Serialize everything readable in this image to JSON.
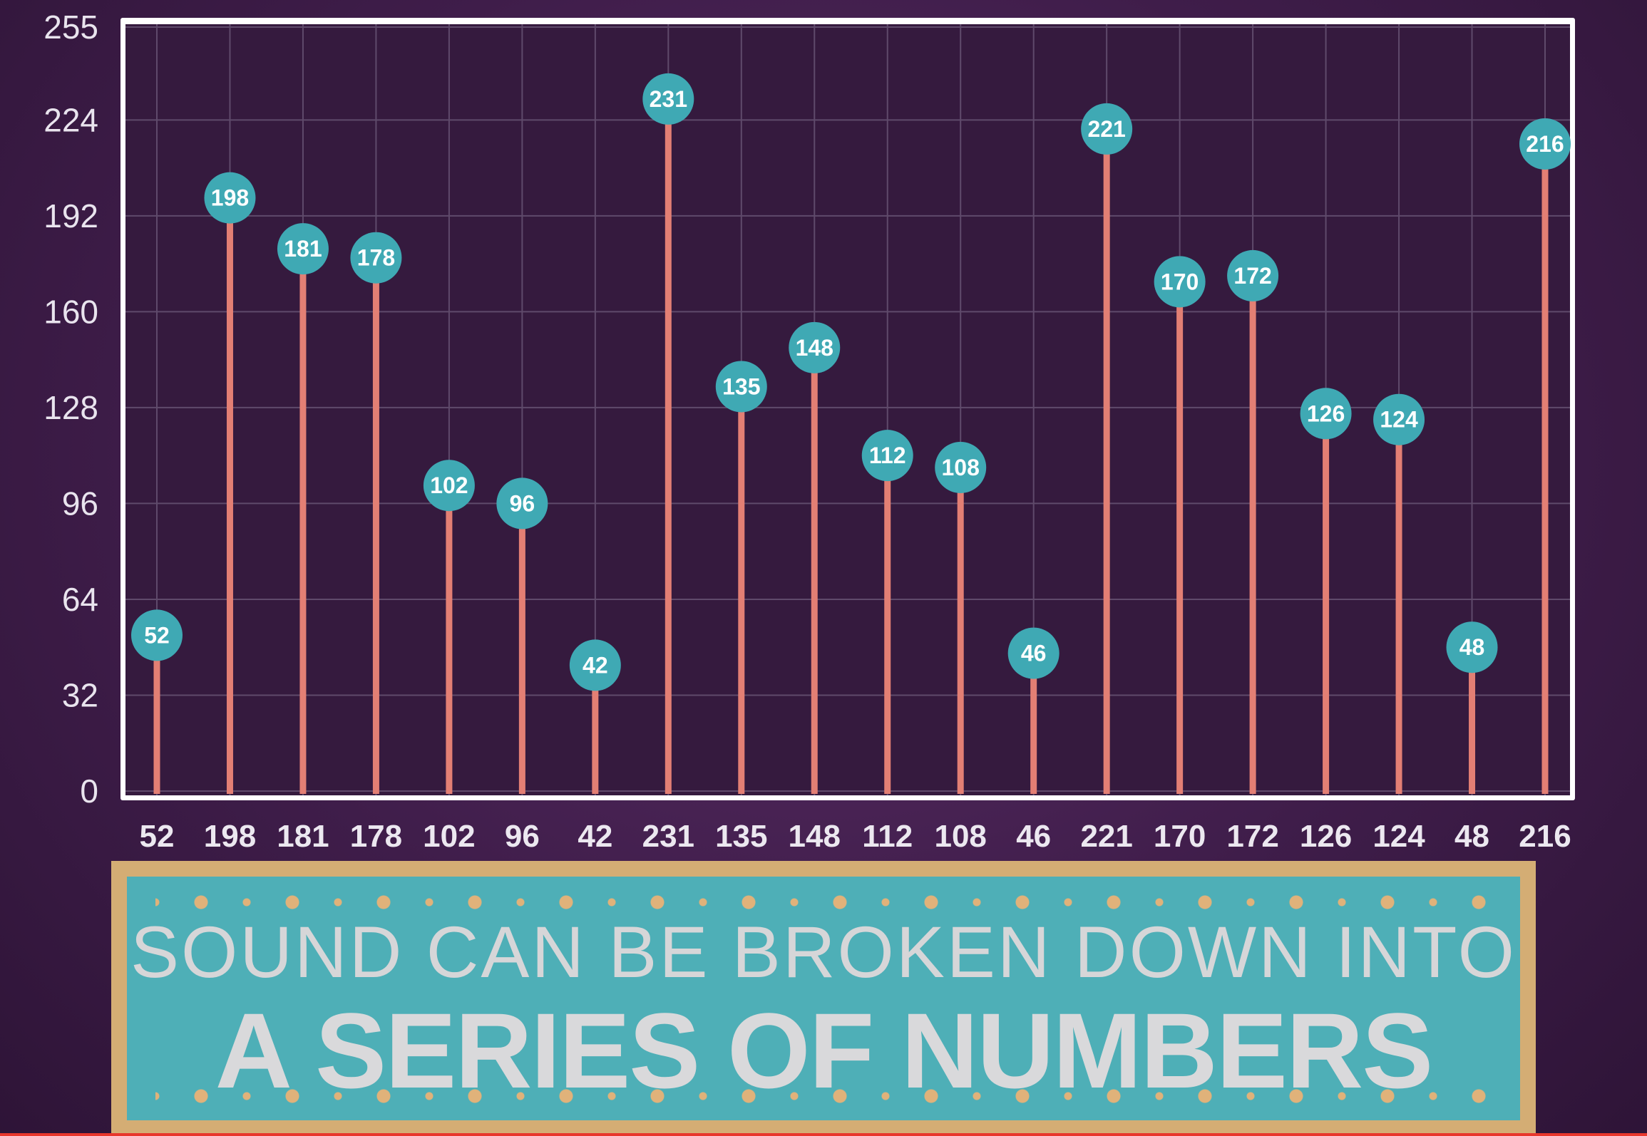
{
  "chart_data": {
    "type": "bar",
    "categories": [
      "52",
      "198",
      "181",
      "178",
      "102",
      "96",
      "42",
      "231",
      "135",
      "148",
      "112",
      "108",
      "46",
      "221",
      "170",
      "172",
      "126",
      "124",
      "48",
      "216"
    ],
    "values": [
      52,
      198,
      181,
      178,
      102,
      96,
      42,
      231,
      135,
      148,
      112,
      108,
      46,
      221,
      170,
      172,
      126,
      124,
      48,
      216
    ],
    "yticks": [
      0,
      32,
      64,
      96,
      128,
      160,
      192,
      224,
      255
    ],
    "ylim": [
      0,
      255
    ],
    "grid": true,
    "title": "",
    "xlabel": "",
    "ylabel": "",
    "colors": {
      "stem": "#e37f74",
      "marker": "#3fa9b4",
      "plot_bg": "#351a3e",
      "grid": "#5f4a6b",
      "frame": "#ffffff"
    }
  },
  "banner": {
    "line1": "SOUND CAN BE BROKEN DOWN INTO",
    "line2": "A SERIES OF NUMBERS"
  }
}
